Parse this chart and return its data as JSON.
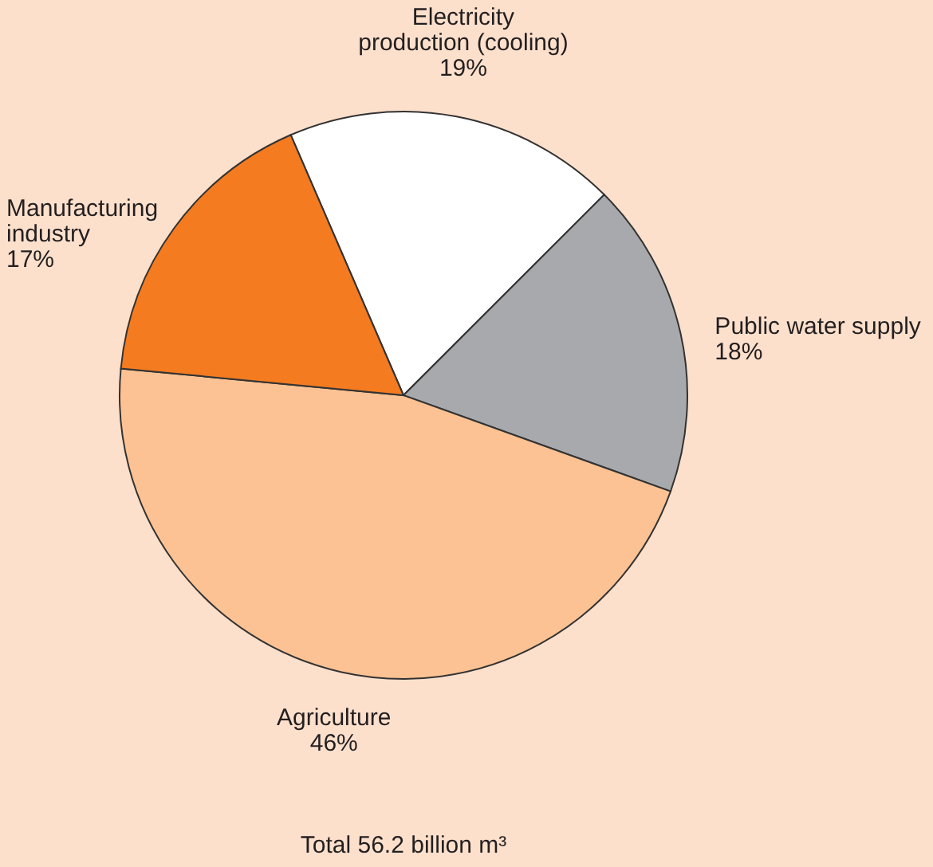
{
  "chart_data": {
    "type": "pie",
    "categories": [
      "Electricity production (cooling)",
      "Public water supply",
      "Agriculture",
      "Manufacturing industry"
    ],
    "values": [
      19,
      18,
      46,
      17
    ],
    "value_labels": [
      "19%",
      "18%",
      "46%",
      "17%"
    ],
    "colors": [
      "#ffffff",
      "#a7a9ac",
      "#fdc293",
      "#f47b20"
    ],
    "annotations": [
      "Total 56.2 billion m³"
    ]
  }
}
